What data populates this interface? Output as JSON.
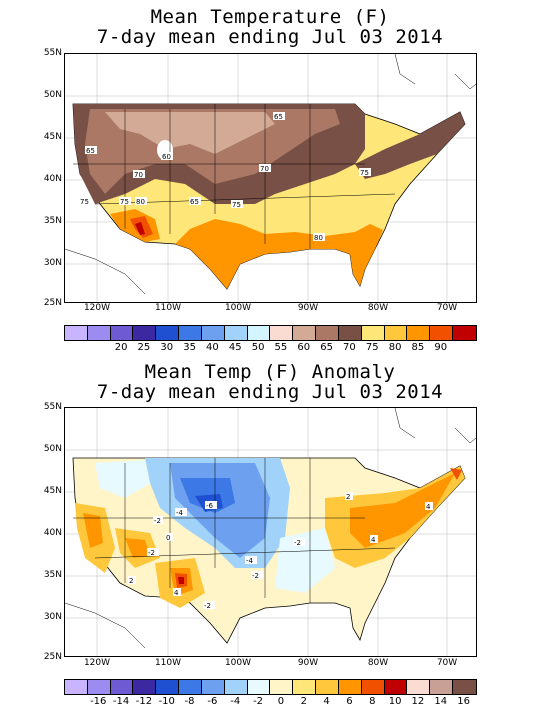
{
  "top_panel": {
    "title_line1": "Mean Temperature (F)",
    "title_line2": "7-day mean ending Jul 03 2014",
    "lat_ticks": [
      "55N",
      "50N",
      "45N",
      "40N",
      "35N",
      "30N",
      "25N"
    ],
    "lon_ticks": [
      "120W",
      "110W",
      "100W",
      "90W",
      "80W",
      "70W"
    ],
    "contour_labels": [
      "65",
      "65",
      "60",
      "70",
      "70",
      "75",
      "75",
      "75",
      "80",
      "65",
      "80",
      "75"
    ],
    "colorbar": {
      "colors": [
        "#c8b4ff",
        "#9c8cf0",
        "#6e5ad2",
        "#3c28a0",
        "#2050d2",
        "#3c78e6",
        "#6ea0f0",
        "#a0d2fa",
        "#d2f5ff",
        "#fadcd2",
        "#d2aa96",
        "#aa7864",
        "#785046",
        "#ffe678",
        "#ffc83c",
        "#ff9600",
        "#f05000",
        "#c00000"
      ],
      "labels": [
        "20",
        "25",
        "30",
        "35",
        "40",
        "45",
        "50",
        "55",
        "60",
        "65",
        "70",
        "75",
        "80",
        "85",
        "90"
      ]
    }
  },
  "bottom_panel": {
    "title_line1": "Mean Temp (F) Anomaly",
    "title_line2": "7-day mean ending Jul 03 2014",
    "lat_ticks": [
      "55N",
      "50N",
      "45N",
      "40N",
      "35N",
      "30N",
      "25N"
    ],
    "lon_ticks": [
      "120W",
      "110W",
      "100W",
      "90W",
      "80W",
      "70W"
    ],
    "contour_labels": [
      "-6",
      "-4",
      "-2",
      "-4",
      "-2",
      "0",
      "2",
      "-2",
      "4",
      "-2",
      "-2",
      "4",
      "2",
      "4"
    ],
    "colorbar": {
      "colors": [
        "#c8b4ff",
        "#9c8cf0",
        "#6e5ad2",
        "#3c28a0",
        "#2050d2",
        "#3c78e6",
        "#6ea0f0",
        "#a0d2fa",
        "#e6faff",
        "#fff5c8",
        "#ffe678",
        "#ffc83c",
        "#ff9600",
        "#f05000",
        "#c00000",
        "#fadcd2",
        "#c8a096",
        "#785046"
      ],
      "labels": [
        "-16",
        "-14",
        "-12",
        "-10",
        "-8",
        "-6",
        "-4",
        "-2",
        "0",
        "2",
        "4",
        "6",
        "8",
        "10",
        "12",
        "14",
        "16"
      ]
    }
  }
}
